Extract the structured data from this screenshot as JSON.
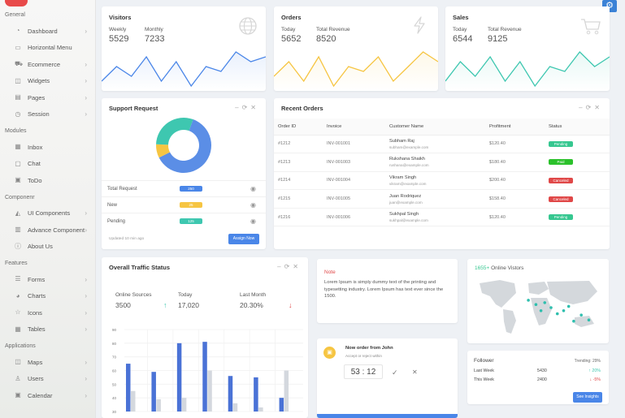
{
  "colors": {
    "accent": "#4a86e8",
    "teal": "#3ec7b0",
    "yellow": "#f6c542",
    "red": "#e04848",
    "green": "#36c790"
  },
  "sidebar": {
    "sections": [
      {
        "label": "General",
        "items": [
          {
            "label": "Dashboard",
            "icon": "dashboard-icon",
            "chev": true
          },
          {
            "label": "Horizontal Menu",
            "icon": "menu-icon",
            "chev": false
          },
          {
            "label": "Ecommerce",
            "icon": "cart-icon",
            "chev": true
          },
          {
            "label": "Widgets",
            "icon": "widget-icon",
            "chev": true
          },
          {
            "label": "Pages",
            "icon": "pages-icon",
            "chev": true
          },
          {
            "label": "Session",
            "icon": "session-icon",
            "chev": true
          }
        ]
      },
      {
        "label": "Modules",
        "items": [
          {
            "label": "Inbox",
            "icon": "inbox-icon",
            "chev": false
          },
          {
            "label": "Chat",
            "icon": "chat-icon",
            "chev": false
          },
          {
            "label": "ToDo",
            "icon": "todo-icon",
            "chev": false
          }
        ]
      },
      {
        "label": "Componenr",
        "items": [
          {
            "label": "UI Components",
            "icon": "ui-icon",
            "chev": true
          },
          {
            "label": "Advance Component",
            "icon": "advance-icon",
            "chev": true
          },
          {
            "label": "About Us",
            "icon": "about-icon",
            "chev": false
          }
        ]
      },
      {
        "label": "Features",
        "items": [
          {
            "label": "Forms",
            "icon": "forms-icon",
            "chev": true
          },
          {
            "label": "Charts",
            "icon": "charts-icon",
            "chev": true
          },
          {
            "label": "Icons",
            "icon": "star-icon",
            "chev": true
          },
          {
            "label": "Tables",
            "icon": "tables-icon",
            "chev": true
          }
        ]
      },
      {
        "label": "Applications",
        "items": [
          {
            "label": "Maps",
            "icon": "maps-icon",
            "chev": true
          },
          {
            "label": "Users",
            "icon": "users-icon",
            "chev": true
          },
          {
            "label": "Calendar",
            "icon": "calendar-icon",
            "chev": true
          }
        ]
      }
    ]
  },
  "visitors": {
    "title": "Visitors",
    "weekly_label": "Weekly",
    "weekly": "5529",
    "monthly_label": "Monthly",
    "monthly": "7233",
    "spark": [
      3,
      6,
      4,
      8,
      3,
      7,
      2,
      6,
      5,
      9,
      7,
      8
    ]
  },
  "orders": {
    "title": "Orders",
    "today_label": "Today",
    "today": "5652",
    "rev_label": "Total Revenue",
    "rev": "8520",
    "spark": [
      4,
      7,
      3,
      8,
      2,
      6,
      5,
      8,
      3,
      6,
      9,
      7
    ]
  },
  "sales": {
    "title": "Sales",
    "today_label": "Today",
    "today": "6544",
    "rev_label": "Total Revenue",
    "rev": "9125",
    "spark": [
      3,
      7,
      4,
      8,
      3,
      7,
      2,
      6,
      5,
      9,
      6,
      8
    ]
  },
  "support": {
    "title": "Support Request",
    "donut": [
      {
        "color": "#5b8ee6",
        "value": 62
      },
      {
        "color": "#f6c542",
        "value": 8
      },
      {
        "color": "#3ec7b0",
        "value": 30
      }
    ],
    "rows": [
      {
        "label": "Total Request",
        "value": "250",
        "color": "#4a86e8"
      },
      {
        "label": "New",
        "value": "25",
        "color": "#f6c542"
      },
      {
        "label": "Pending",
        "value": "125",
        "color": "#3ec7b0"
      }
    ],
    "updated": "Updated 10 min ago",
    "button": "Assign Now"
  },
  "recent_orders": {
    "title": "Recent Orders",
    "headers": [
      "Order ID",
      "Invoice",
      "Customer Name",
      "Profitment",
      "Status"
    ],
    "rows": [
      {
        "id": "#1212",
        "inv": "INV-001001",
        "name": "Subham Raj",
        "email": "subham@example.com",
        "amount": "$120.40",
        "status": "Pending",
        "color": "#36c790"
      },
      {
        "id": "#1213",
        "inv": "INV-001003",
        "name": "Rukshana Shaikh",
        "email": "rushana@example.com",
        "amount": "$180.40",
        "status": "Paid",
        "color": "#2bc12b"
      },
      {
        "id": "#1214",
        "inv": "INV-001004",
        "name": "Vikram Singh",
        "email": "vikram@example.com",
        "amount": "$200.40",
        "status": "Canceled",
        "color": "#e04848"
      },
      {
        "id": "#1215",
        "inv": "INV-001005",
        "name": "Juan Rodriquez",
        "email": "juan@example.com",
        "amount": "$158.40",
        "status": "Canceled",
        "color": "#e04848"
      },
      {
        "id": "#1216",
        "inv": "INV-001006",
        "name": "Sukhpal Singh",
        "email": "sukhpal@example.com",
        "amount": "$120.40",
        "status": "Pending",
        "color": "#36c790"
      }
    ]
  },
  "traffic": {
    "title": "Overall Traffic Status",
    "stats": [
      {
        "label": "Online Sources",
        "value": "3500",
        "arrow": "",
        "arrow_color": ""
      },
      {
        "label": "Today",
        "value": "17,020",
        "arrow": "↑",
        "arrow_color": "#3ec7b0"
      },
      {
        "label": "Last Month",
        "value": "20.30%",
        "arrow": "↓",
        "arrow_color": "#e04848"
      }
    ]
  },
  "chart_data": {
    "type": "bar",
    "ylim": [
      30,
      90
    ],
    "yticks": [
      "90",
      "80",
      "70",
      "60",
      "50",
      "40",
      "30"
    ],
    "series": [
      {
        "values": [
          65,
          59,
          80,
          81,
          56,
          55,
          40
        ],
        "color": "#4a72d6"
      },
      {
        "values": [
          45,
          39,
          40,
          60,
          36,
          33,
          60
        ],
        "color": "#d4d8de"
      }
    ]
  },
  "note": {
    "title": "Note",
    "text": "Lorem Ipsum is simply dummy text of the printing and typesetting industry. Lorem Ipsum has text ever since the 1500."
  },
  "new_order": {
    "title": "Now order from John",
    "subtitle": "Accept or reject within",
    "timer": "53 : 12",
    "accept": "✓",
    "reject": "✕"
  },
  "map": {
    "prefix": "1655+",
    "title": "Online Vistors",
    "dots": [
      [
        0.42,
        0.38
      ],
      [
        0.48,
        0.45
      ],
      [
        0.52,
        0.55
      ],
      [
        0.55,
        0.42
      ],
      [
        0.6,
        0.5
      ],
      [
        0.65,
        0.6
      ],
      [
        0.7,
        0.55
      ],
      [
        0.78,
        0.72
      ],
      [
        0.84,
        0.62
      ],
      [
        0.9,
        0.7
      ],
      [
        0.74,
        0.48
      ]
    ]
  },
  "follower": {
    "title": "Follower",
    "trend": "Trending: 29%",
    "rows": [
      {
        "label": "Last Week",
        "value": "5430",
        "change": "↑ 20%",
        "color": "#3ec7b0"
      },
      {
        "label": "This Week",
        "value": "2400",
        "change": "↓ -5%",
        "color": "#e04848"
      }
    ],
    "button": "See Insights"
  }
}
